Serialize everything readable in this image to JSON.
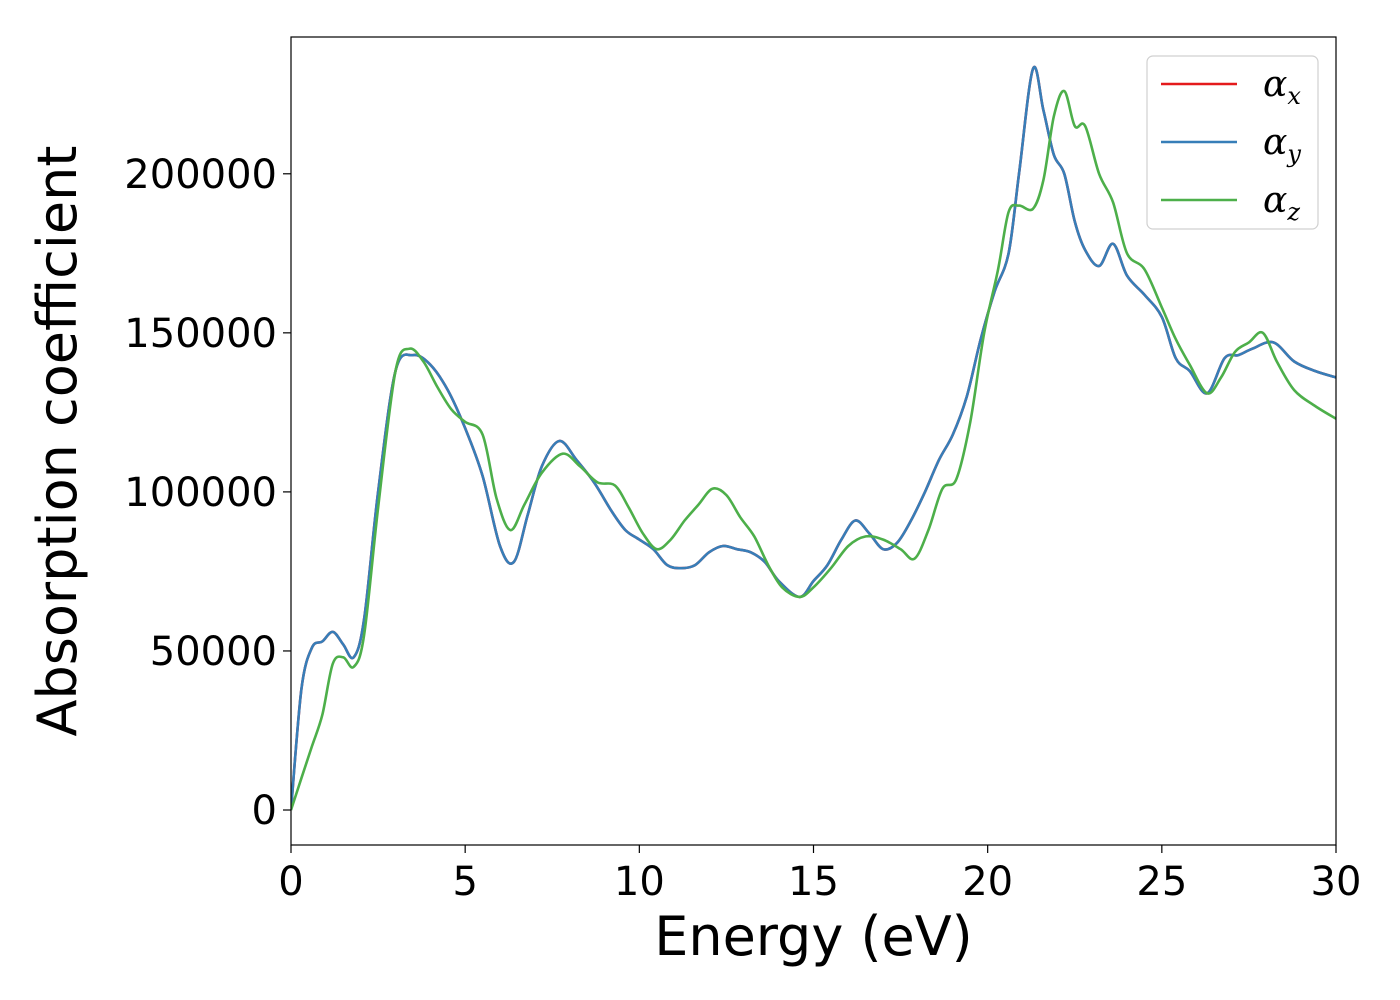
{
  "chart_data": {
    "type": "line",
    "title": "",
    "xlabel": "Energy (eV)",
    "ylabel": "Absorption coefficient",
    "xlim": [
      0,
      30
    ],
    "ylim": [
      -11000,
      243000
    ],
    "xticks": [
      0,
      5,
      10,
      15,
      20,
      25,
      30
    ],
    "yticks": [
      0,
      50000,
      100000,
      150000,
      200000
    ],
    "grid": false,
    "legend": {
      "placement": "top-right"
    },
    "series": [
      {
        "name": "αx",
        "symbol": "α",
        "subscript": "x",
        "color": "#e41a1c",
        "x": [
          0,
          0.3,
          0.6,
          0.9,
          1.2,
          1.5,
          1.8,
          2.1,
          2.5,
          3.0,
          3.5,
          4.0,
          4.5,
          5.0,
          5.5,
          6.0,
          6.4,
          6.8,
          7.2,
          7.7,
          8.2,
          8.7,
          9.2,
          9.6,
          10.0,
          10.4,
          10.8,
          11.2,
          11.6,
          12.0,
          12.4,
          12.8,
          13.2,
          13.6,
          14.0,
          14.6,
          15.0,
          15.4,
          15.8,
          16.2,
          16.6,
          17.0,
          17.4,
          17.8,
          18.2,
          18.6,
          19.0,
          19.4,
          19.8,
          20.2,
          20.6,
          20.9,
          21.3,
          21.6,
          21.9,
          22.2,
          22.5,
          22.8,
          23.2,
          23.6,
          24.0,
          24.5,
          25.0,
          25.4,
          25.8,
          26.3,
          26.8,
          27.2,
          27.6,
          28.2,
          28.8,
          29.4,
          30.0
        ],
        "values": [
          0,
          38000,
          51000,
          53000,
          56000,
          52000,
          48000,
          60000,
          100000,
          138000,
          143000,
          140000,
          132000,
          120000,
          105000,
          83000,
          78000,
          93000,
          108000,
          116000,
          110000,
          103000,
          94000,
          88000,
          85000,
          82000,
          77000,
          76000,
          77000,
          81000,
          83000,
          82000,
          81000,
          78000,
          72000,
          67000,
          72000,
          77000,
          85000,
          91000,
          87000,
          82000,
          84000,
          91000,
          100000,
          110000,
          118000,
          130000,
          148000,
          163000,
          175000,
          200000,
          233000,
          220000,
          206000,
          200000,
          185000,
          176000,
          171000,
          178000,
          168000,
          162000,
          155000,
          142000,
          138000,
          131000,
          142000,
          143000,
          145000,
          147000,
          141000,
          138000,
          136000
        ]
      },
      {
        "name": "αy",
        "symbol": "α",
        "subscript": "y",
        "color": "#377eb8",
        "x": [
          0,
          0.3,
          0.6,
          0.9,
          1.2,
          1.5,
          1.8,
          2.1,
          2.5,
          3.0,
          3.5,
          4.0,
          4.5,
          5.0,
          5.5,
          6.0,
          6.4,
          6.8,
          7.2,
          7.7,
          8.2,
          8.7,
          9.2,
          9.6,
          10.0,
          10.4,
          10.8,
          11.2,
          11.6,
          12.0,
          12.4,
          12.8,
          13.2,
          13.6,
          14.0,
          14.6,
          15.0,
          15.4,
          15.8,
          16.2,
          16.6,
          17.0,
          17.4,
          17.8,
          18.2,
          18.6,
          19.0,
          19.4,
          19.8,
          20.2,
          20.6,
          20.9,
          21.3,
          21.6,
          21.9,
          22.2,
          22.5,
          22.8,
          23.2,
          23.6,
          24.0,
          24.5,
          25.0,
          25.4,
          25.8,
          26.3,
          26.8,
          27.2,
          27.6,
          28.2,
          28.8,
          29.4,
          30.0
        ],
        "values": [
          0,
          38000,
          51000,
          53000,
          56000,
          52000,
          48000,
          60000,
          100000,
          138000,
          143000,
          140000,
          132000,
          120000,
          105000,
          83000,
          78000,
          93000,
          108000,
          116000,
          110000,
          103000,
          94000,
          88000,
          85000,
          82000,
          77000,
          76000,
          77000,
          81000,
          83000,
          82000,
          81000,
          78000,
          72000,
          67000,
          72000,
          77000,
          85000,
          91000,
          87000,
          82000,
          84000,
          91000,
          100000,
          110000,
          118000,
          130000,
          148000,
          163000,
          175000,
          200000,
          233000,
          220000,
          206000,
          200000,
          185000,
          176000,
          171000,
          178000,
          168000,
          162000,
          155000,
          142000,
          138000,
          131000,
          142000,
          143000,
          145000,
          147000,
          141000,
          138000,
          136000
        ]
      },
      {
        "name": "αz",
        "symbol": "α",
        "subscript": "z",
        "color": "#4daf4a",
        "x": [
          0,
          0.3,
          0.6,
          0.9,
          1.2,
          1.5,
          1.8,
          2.1,
          2.5,
          3.0,
          3.4,
          3.8,
          4.2,
          4.6,
          5.0,
          5.5,
          5.9,
          6.3,
          6.7,
          7.2,
          7.8,
          8.3,
          8.8,
          9.3,
          9.7,
          10.1,
          10.5,
          10.9,
          11.3,
          11.7,
          12.1,
          12.5,
          12.9,
          13.3,
          13.7,
          14.1,
          14.6,
          15.0,
          15.5,
          16.0,
          16.5,
          17.0,
          17.5,
          17.9,
          18.3,
          18.7,
          19.1,
          19.5,
          19.9,
          20.3,
          20.6,
          20.9,
          21.3,
          21.6,
          21.9,
          22.2,
          22.5,
          22.8,
          23.2,
          23.6,
          24.0,
          24.5,
          25.0,
          25.4,
          25.8,
          26.3,
          26.7,
          27.1,
          27.5,
          27.9,
          28.3,
          28.8,
          29.4,
          30.0
        ],
        "values": [
          0,
          10000,
          20000,
          30000,
          46000,
          48000,
          45000,
          55000,
          95000,
          138000,
          145000,
          141000,
          133000,
          126000,
          122000,
          118000,
          98000,
          88000,
          96000,
          106000,
          112000,
          108000,
          103000,
          102000,
          95000,
          87000,
          82000,
          85000,
          91000,
          96000,
          101000,
          99000,
          92000,
          86000,
          77000,
          70000,
          67000,
          70000,
          76000,
          83000,
          86000,
          85000,
          82000,
          79000,
          88000,
          101000,
          104000,
          122000,
          150000,
          170000,
          188000,
          190000,
          189000,
          198000,
          218000,
          226000,
          215000,
          215000,
          200000,
          191000,
          175000,
          170000,
          158000,
          148000,
          140000,
          131000,
          136000,
          144000,
          147000,
          150000,
          141000,
          132000,
          127000,
          123000
        ]
      }
    ]
  }
}
